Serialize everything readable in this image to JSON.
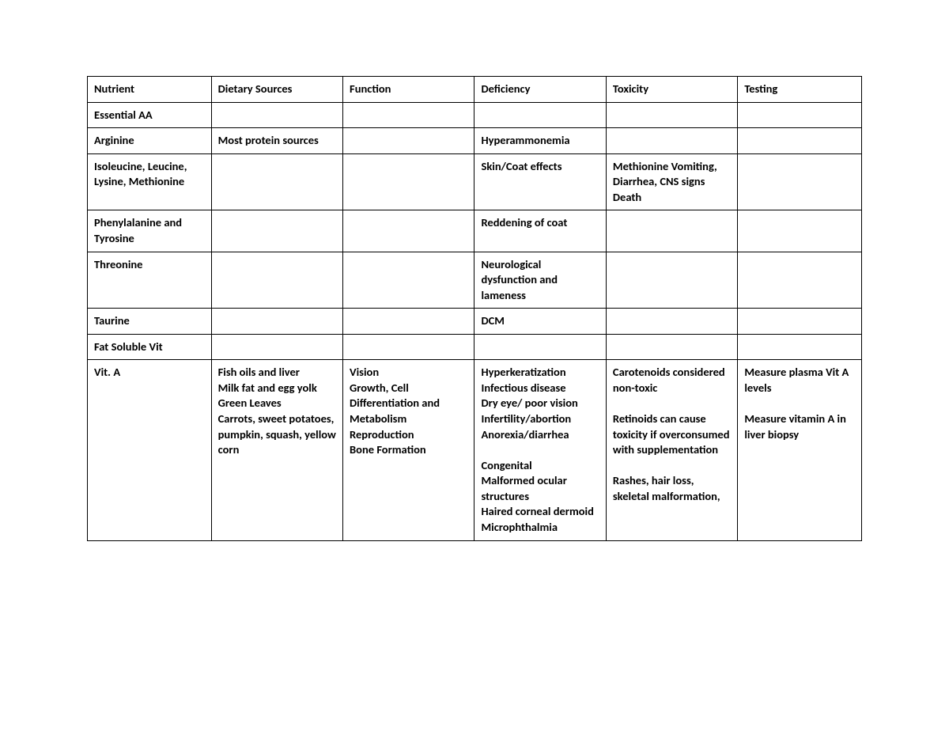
{
  "table": {
    "type": "table",
    "background_color": "#ffffff",
    "border_color": "#000000",
    "text_color": "#000000",
    "font_family": "Calibri",
    "font_size_pt": 11,
    "columns": [
      {
        "key": "nutrient",
        "label": "Nutrient",
        "width_pct": 16,
        "align": "left"
      },
      {
        "key": "dietary",
        "label": "Dietary Sources",
        "width_pct": 17,
        "align": "left"
      },
      {
        "key": "function",
        "label": "Function",
        "width_pct": 17,
        "align": "left"
      },
      {
        "key": "deficiency",
        "label": "Deficiency",
        "width_pct": 17,
        "align": "left"
      },
      {
        "key": "toxicity",
        "label": "Toxicity",
        "width_pct": 17,
        "align": "left"
      },
      {
        "key": "testing",
        "label": "Testing",
        "width_pct": 16,
        "align": "left"
      }
    ],
    "rows": [
      {
        "bold": true,
        "nutrient": "Essential AA",
        "dietary": "",
        "function": "",
        "deficiency": "",
        "toxicity": "",
        "testing": ""
      },
      {
        "bold": true,
        "nutrient": "Arginine",
        "dietary": "Most protein sources",
        "function": "",
        "deficiency": "Hyperammonemia",
        "toxicity": "",
        "testing": ""
      },
      {
        "bold": true,
        "nutrient": "Isoleucine, Leucine, Lysine, Methionine",
        "dietary": "",
        "function": "",
        "deficiency": "Skin/Coat effects",
        "toxicity": "Methionine Vomiting, Diarrhea, CNS signs Death",
        "testing": ""
      },
      {
        "bold": true,
        "nutrient": "Phenylalanine and Tyrosine",
        "dietary": "",
        "function": "",
        "deficiency": "Reddening of coat",
        "toxicity": "",
        "testing": ""
      },
      {
        "bold": true,
        "nutrient": "Threonine",
        "dietary": "",
        "function": "",
        "deficiency": "Neurological dysfunction and lameness",
        "toxicity": "",
        "testing": ""
      },
      {
        "bold": true,
        "nutrient": "Taurine",
        "dietary": "",
        "function": "",
        "deficiency": "DCM",
        "toxicity": "",
        "testing": ""
      },
      {
        "bold": true,
        "nutrient": "Fat Soluble Vit",
        "dietary": "",
        "function": "",
        "deficiency": "",
        "toxicity": "",
        "testing": ""
      },
      {
        "bold": true,
        "nutrient": "Vit. A",
        "dietary": "Fish oils and liver\nMilk fat and egg yolk\nGreen Leaves\nCarrots, sweet potatoes, pumpkin, squash, yellow corn",
        "function": "Vision\nGrowth, Cell Differentiation and Metabolism\nReproduction\nBone Formation",
        "deficiency": "Hyperkeratization\nInfectious disease\nDry eye/ poor vision\nInfertility/abortion\nAnorexia/diarrhea\n\nCongenital\nMalformed ocular structures\nHaired corneal dermoid\nMicrophthalmia",
        "toxicity": "Carotenoids considered non-toxic\n\nRetinoids can cause toxicity if overconsumed with supplementation\n\nRashes, hair loss, skeletal malformation,",
        "testing": "Measure plasma Vit A levels\n\nMeasure vitamin A in liver biopsy"
      }
    ]
  }
}
